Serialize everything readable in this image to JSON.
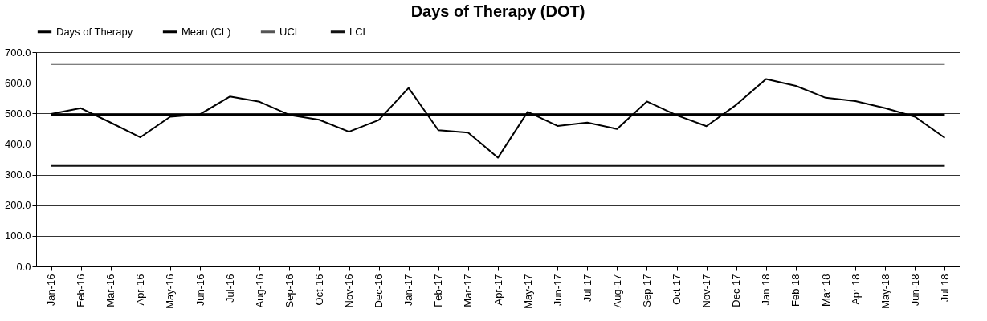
{
  "chart_data": {
    "type": "line",
    "title": "Days of Therapy (DOT)",
    "categories": [
      "Jan-16",
      "Feb-16",
      "Mar-16",
      "Apr-16",
      "May-16",
      "Jun-16",
      "Jul-16",
      "Aug-16",
      "Sep-16",
      "Oct-16",
      "Nov-16",
      "Dec-16",
      "Jan-17",
      "Feb-17",
      "Mar-17",
      "Apr-17",
      "May-17",
      "Jun-17",
      "Jul 17",
      "Aug-17",
      "Sep 17",
      "Oct 17",
      "Nov-17",
      "Dec 17",
      "Jan 18",
      "Feb 18",
      "Mar 18",
      "Apr 18",
      "May-18",
      "Jun-18",
      "Jul 18"
    ],
    "series": [
      {
        "name": "Days of Therapy",
        "color": "#000000",
        "values": [
          498,
          517,
          470,
          422,
          489,
          497,
          555,
          538,
          495,
          479,
          440,
          478,
          583,
          445,
          437,
          355,
          505,
          459,
          470,
          449,
          539,
          494,
          458,
          528,
          612,
          590,
          551,
          540,
          517,
          489,
          420
        ]
      },
      {
        "name": "Mean (CL)",
        "color": "#000000",
        "values": [
          495,
          495,
          495,
          495,
          495,
          495,
          495,
          495,
          495,
          495,
          495,
          495,
          495,
          495,
          495,
          495,
          495,
          495,
          495,
          495,
          495,
          495,
          495,
          495,
          495,
          495,
          495,
          495,
          495,
          495,
          495
        ]
      },
      {
        "name": "UCL",
        "color": "#555555",
        "values": [
          660,
          660,
          660,
          660,
          660,
          660,
          660,
          660,
          660,
          660,
          660,
          660,
          660,
          660,
          660,
          660,
          660,
          660,
          660,
          660,
          660,
          660,
          660,
          660,
          660,
          660,
          660,
          660,
          660,
          660,
          660
        ]
      },
      {
        "name": "LCL",
        "color": "#111111",
        "values": [
          330,
          330,
          330,
          330,
          330,
          330,
          330,
          330,
          330,
          330,
          330,
          330,
          330,
          330,
          330,
          330,
          330,
          330,
          330,
          330,
          330,
          330,
          330,
          330,
          330,
          330,
          330,
          330,
          330,
          330,
          330
        ]
      }
    ],
    "ylim": [
      0,
      700
    ],
    "yticks": [
      {
        "value": 0,
        "label": "0.0"
      },
      {
        "value": 100,
        "label": "100.0"
      },
      {
        "value": 200,
        "label": "200.0"
      },
      {
        "value": 300,
        "label": "300.0"
      },
      {
        "value": 400,
        "label": "400.0"
      },
      {
        "value": 500,
        "label": "500.0"
      },
      {
        "value": 600,
        "label": "600.0"
      },
      {
        "value": 700,
        "label": "700.0"
      }
    ],
    "grid": "y",
    "legend": "top",
    "marker": "none",
    "line_style": "solid"
  }
}
